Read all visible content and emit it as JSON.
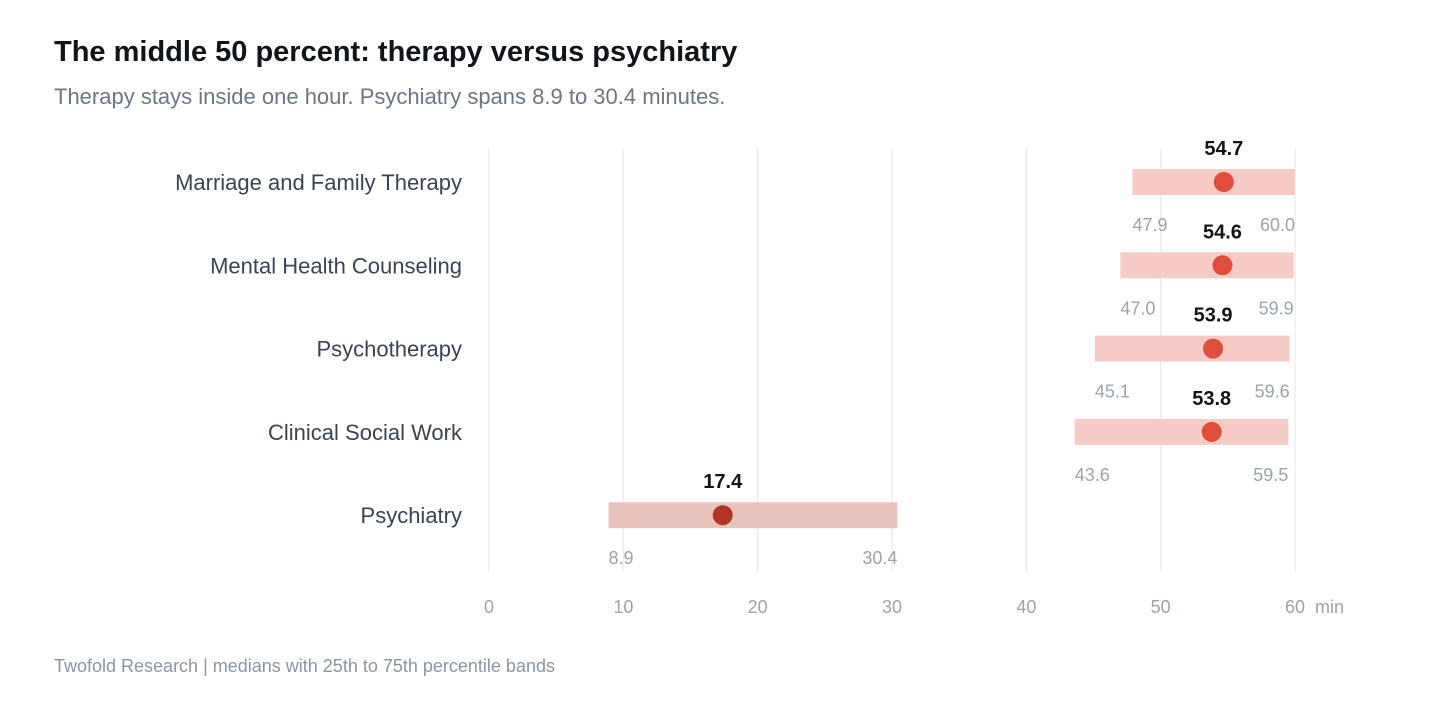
{
  "header": {
    "title": "The middle 50 percent: therapy versus psychiatry",
    "subtitle": "Therapy stays inside one hour. Psychiatry spans 8.9 to 30.4 minutes."
  },
  "footer": {
    "source": "Twofold Research | medians with 25th to 75th percentile bands"
  },
  "chart_data": {
    "type": "range",
    "title": "The middle 50 percent: therapy versus psychiatry",
    "subtitle": "Therapy stays inside one hour. Psychiatry spans 8.9 to 30.4 minutes.",
    "x_unit": "min",
    "xlim": [
      0,
      60
    ],
    "x_ticks": [
      0,
      10,
      20,
      30,
      40,
      50,
      60
    ],
    "grid": true,
    "colors": {
      "therapy_band": "#f6cbc5",
      "therapy_dot": "#e04e3b",
      "psychiatry_band": "#e8c3bb",
      "psychiatry_dot": "#b23422",
      "grid": "#ebedf0"
    },
    "series": [
      {
        "category": "Marriage and Family Therapy",
        "p25": 47.9,
        "median": 54.7,
        "p75": 60.0,
        "group": "therapy"
      },
      {
        "category": "Mental Health Counseling",
        "p25": 47.0,
        "median": 54.6,
        "p75": 59.9,
        "group": "therapy"
      },
      {
        "category": "Psychotherapy",
        "p25": 45.1,
        "median": 53.9,
        "p75": 59.6,
        "group": "therapy"
      },
      {
        "category": "Clinical Social Work",
        "p25": 43.6,
        "median": 53.8,
        "p75": 59.5,
        "group": "therapy"
      },
      {
        "category": "Psychiatry",
        "p25": 8.9,
        "median": 17.4,
        "p75": 30.4,
        "group": "psychiatry"
      }
    ]
  }
}
